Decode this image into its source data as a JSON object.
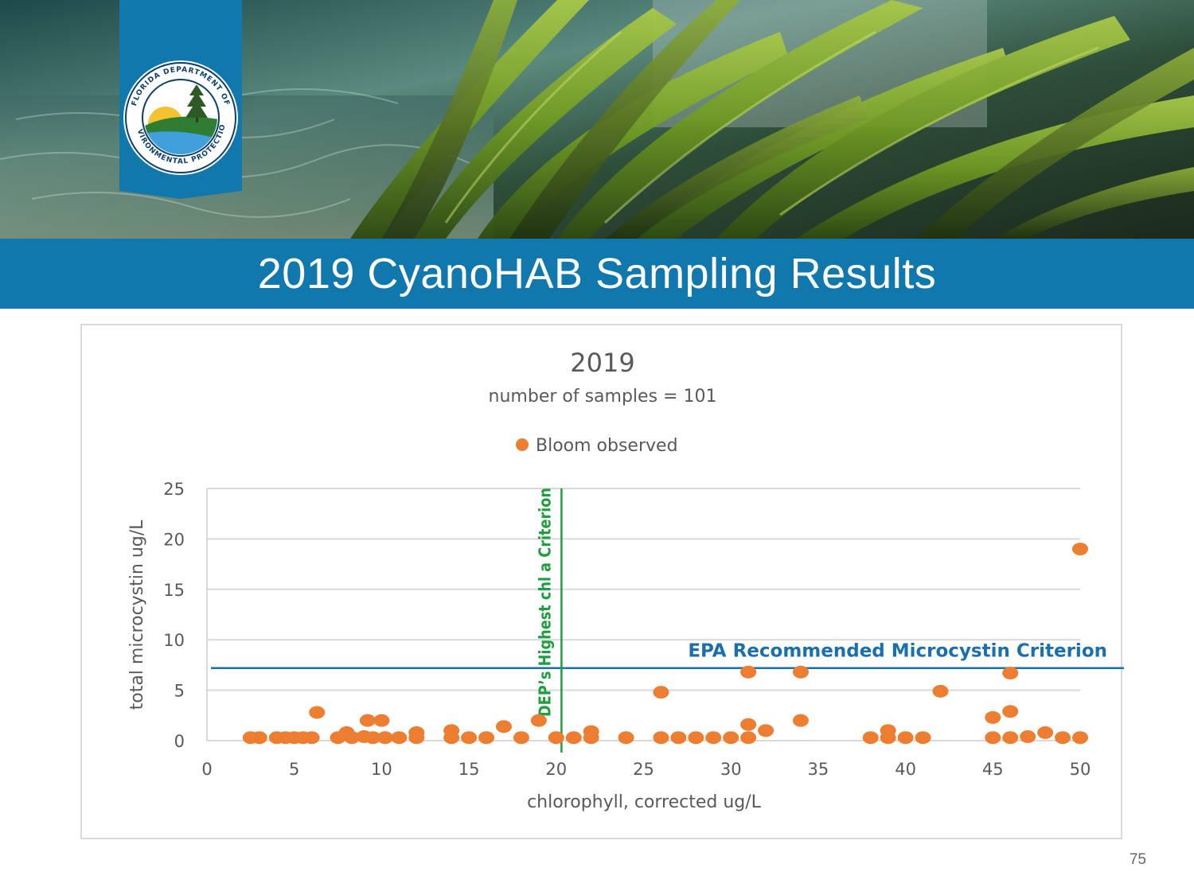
{
  "slide": {
    "title": "2019 CyanoHAB Sampling Results",
    "page_number": "75",
    "title_bar_color": "#1178ad",
    "logo_icon": "florida-dep-seal-icon",
    "logo_text": "FLORIDA DEPARTMENT OF ENVIRONMENTAL PROTECTION",
    "banner_image": "seagrass-underwater-photo"
  },
  "chart_data": {
    "type": "scatter",
    "title": "2019",
    "subtitle": "number of samples = 101",
    "xlabel": "chlorophyll, corrected ug/L",
    "ylabel": "total microcystin ug/L",
    "xlim": [
      0,
      50
    ],
    "ylim": [
      0,
      25
    ],
    "x_ticks": [
      0,
      5,
      10,
      15,
      20,
      25,
      30,
      35,
      40,
      45,
      50
    ],
    "y_ticks": [
      0,
      5,
      10,
      15,
      20,
      25
    ],
    "grid": true,
    "legend_position": "top-center",
    "series": [
      {
        "name": "Bloom observed",
        "color": "#ed7d31",
        "points": [
          [
            2.5,
            0.3
          ],
          [
            3.0,
            0.3
          ],
          [
            4.0,
            0.3
          ],
          [
            4.5,
            0.3
          ],
          [
            5.0,
            0.3
          ],
          [
            5.5,
            0.3
          ],
          [
            6.0,
            0.3
          ],
          [
            6.3,
            2.8
          ],
          [
            7.5,
            0.3
          ],
          [
            8.0,
            0.8
          ],
          [
            8.3,
            0.3
          ],
          [
            9.0,
            0.4
          ],
          [
            9.2,
            2.0
          ],
          [
            9.5,
            0.3
          ],
          [
            10.0,
            2.0
          ],
          [
            10.2,
            0.3
          ],
          [
            11.0,
            0.3
          ],
          [
            12.0,
            0.8
          ],
          [
            12.0,
            0.3
          ],
          [
            14.0,
            1.0
          ],
          [
            14.0,
            0.3
          ],
          [
            15.0,
            0.3
          ],
          [
            16.0,
            0.3
          ],
          [
            17.0,
            1.4
          ],
          [
            18.0,
            0.3
          ],
          [
            19.0,
            2.0
          ],
          [
            20.0,
            0.3
          ],
          [
            21.0,
            0.3
          ],
          [
            22.0,
            0.9
          ],
          [
            22.0,
            0.3
          ],
          [
            24.0,
            0.3
          ],
          [
            26.0,
            4.8
          ],
          [
            26.0,
            0.3
          ],
          [
            27.0,
            0.3
          ],
          [
            28.0,
            0.3
          ],
          [
            29.0,
            0.3
          ],
          [
            30.0,
            0.3
          ],
          [
            31.0,
            6.8
          ],
          [
            31.0,
            1.6
          ],
          [
            31.0,
            0.3
          ],
          [
            32.0,
            1.0
          ],
          [
            34.0,
            6.8
          ],
          [
            34.0,
            2.0
          ],
          [
            38.0,
            0.3
          ],
          [
            39.0,
            1.0
          ],
          [
            39.0,
            0.3
          ],
          [
            40.0,
            0.3
          ],
          [
            41.0,
            0.3
          ],
          [
            42.0,
            4.9
          ],
          [
            45.0,
            2.3
          ],
          [
            45.0,
            0.3
          ],
          [
            46.0,
            6.7
          ],
          [
            46.0,
            2.9
          ],
          [
            46.0,
            0.3
          ],
          [
            47.0,
            0.4
          ],
          [
            48.0,
            0.8
          ],
          [
            49.0,
            0.3
          ],
          [
            50.0,
            19.0
          ],
          [
            50.0,
            0.3
          ]
        ]
      }
    ],
    "reference_lines": [
      {
        "orientation": "horizontal",
        "value": 7.2,
        "label": "EPA Recommended Microcystin Criterion",
        "color": "#1a6fad"
      },
      {
        "orientation": "vertical",
        "value": 20.3,
        "label": "DEP’s Highest chl a Criterion",
        "color": "#1e9e3e"
      }
    ]
  }
}
